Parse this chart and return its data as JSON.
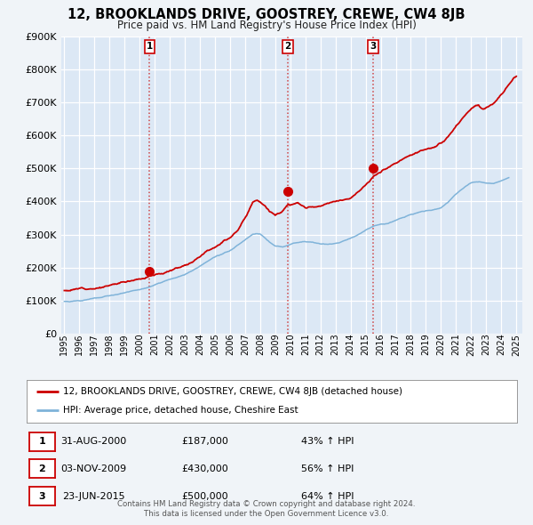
{
  "title": "12, BROOKLANDS DRIVE, GOOSTREY, CREWE, CW4 8JB",
  "subtitle": "Price paid vs. HM Land Registry's House Price Index (HPI)",
  "background_color": "#f0f4f8",
  "plot_bg_color": "#dce8f5",
  "grid_color": "#ffffff",
  "ylim": [
    0,
    900000
  ],
  "yticks": [
    0,
    100000,
    200000,
    300000,
    400000,
    500000,
    600000,
    700000,
    800000,
    900000
  ],
  "xlim_start": 1994.8,
  "xlim_end": 2025.4,
  "xticks": [
    1995,
    1996,
    1997,
    1998,
    1999,
    2000,
    2001,
    2002,
    2003,
    2004,
    2005,
    2006,
    2007,
    2008,
    2009,
    2010,
    2011,
    2012,
    2013,
    2014,
    2015,
    2016,
    2017,
    2018,
    2019,
    2020,
    2021,
    2022,
    2023,
    2024,
    2025
  ],
  "red_line_color": "#cc0000",
  "blue_line_color": "#7fb3d9",
  "sale_marker_color": "#cc0000",
  "sale_marker_size": 7,
  "sales": [
    {
      "date_num": 2000.664,
      "price": 187000,
      "label": "1"
    },
    {
      "date_num": 2009.838,
      "price": 430000,
      "label": "2"
    },
    {
      "date_num": 2015.478,
      "price": 500000,
      "label": "3"
    }
  ],
  "legend_red_label": "12, BROOKLANDS DRIVE, GOOSTREY, CREWE, CW4 8JB (detached house)",
  "legend_blue_label": "HPI: Average price, detached house, Cheshire East",
  "table_rows": [
    {
      "num": "1",
      "date": "31-AUG-2000",
      "price": "£187,000",
      "hpi": "43% ↑ HPI"
    },
    {
      "num": "2",
      "date": "03-NOV-2009",
      "price": "£430,000",
      "hpi": "56% ↑ HPI"
    },
    {
      "num": "3",
      "date": "23-JUN-2015",
      "price": "£500,000",
      "hpi": "64% ↑ HPI"
    }
  ],
  "footer_line1": "Contains HM Land Registry data © Crown copyright and database right 2024.",
  "footer_line2": "This data is licensed under the Open Government Licence v3.0."
}
